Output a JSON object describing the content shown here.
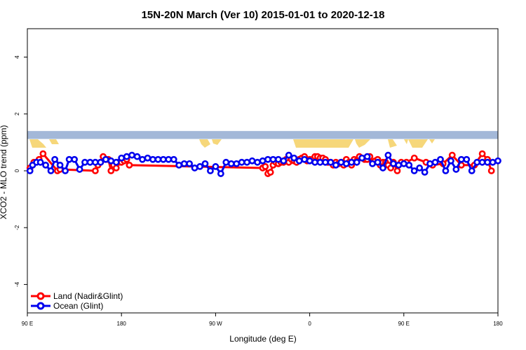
{
  "chart_data": {
    "type": "line",
    "title": "15N-20N March (Ver 10)   2015-01-01 to 2020-12-18",
    "xlabel": "Longitude (deg E)",
    "ylabel": "XCO2 - MLO trend (ppm)",
    "xlim": [
      90,
      450
    ],
    "ylim": [
      -5,
      5
    ],
    "x_ticks": [
      {
        "value": 90,
        "label": "90 E"
      },
      {
        "value": 180,
        "label": "180"
      },
      {
        "value": 270,
        "label": "90 W"
      },
      {
        "value": 360,
        "label": "0"
      },
      {
        "value": 450,
        "label": "90 E"
      },
      {
        "value": 540,
        "label": "180"
      }
    ],
    "y_ticks": [
      {
        "value": -4,
        "label": "-4"
      },
      {
        "value": -2,
        "label": "-2"
      },
      {
        "value": 0,
        "label": "0"
      },
      {
        "value": 2,
        "label": "2"
      },
      {
        "value": 4,
        "label": "4"
      }
    ],
    "x_range_shown": [
      90,
      540
    ],
    "land_band": {
      "ymin": 1.12,
      "ymax": 1.4,
      "ocean_color": "#a3b8d8",
      "land_color": "#f6d77a"
    },
    "legend_position": "bottom-left",
    "series": [
      {
        "name": "Land (Nadir&Glint)",
        "color": "#ff0000",
        "x": [
          92,
          95,
          99,
          102,
          113,
          115,
          142,
          144,
          146,
          148,
          150,
          152,
          154,
          156,
          158,
          160,
          162,
          164,
          166,
          168,
          270,
          272,
          274,
          276,
          278,
          280,
          282,
          284,
          286,
          288,
          290,
          292,
          294,
          296,
          298,
          300,
          302,
          304,
          306,
          308,
          310,
          312,
          314,
          316,
          318,
          320,
          322,
          324,
          326,
          328,
          330,
          332,
          334,
          336,
          338,
          340,
          342,
          344,
          346,
          348,
          350,
          352,
          354,
          356,
          358,
          360,
          362,
          364,
          366,
          368,
          370,
          373,
          376,
          380,
          386,
          395,
          400,
          408,
          415,
          422,
          432,
          438,
          442,
          445
        ],
        "values": [
          0.1,
          0.3,
          0.4,
          0.6,
          0.0,
          0.05,
          0.0,
          0.2,
          0.3,
          0.5,
          0.4,
          0.4,
          0.0,
          0.2,
          0.1,
          0.3,
          0.3,
          0.35,
          0.4,
          0.2,
          0.1,
          0.15,
          -0.1,
          -0.05,
          0.2,
          0.3,
          0.25,
          0.3,
          0.3,
          0.4,
          0.3,
          0.4,
          0.35,
          0.3,
          0.4,
          0.45,
          0.5,
          0.35,
          0.4,
          0.4,
          0.5,
          0.5,
          0.45,
          0.45,
          0.4,
          0.3,
          0.3,
          0.2,
          0.3,
          0.25,
          0.3,
          0.2,
          0.4,
          0.3,
          0.2,
          0.4,
          0.35,
          0.5,
          0.45,
          0.4,
          0.4,
          0.5,
          0.3,
          0.35,
          0.4,
          0.2,
          0.3,
          0.3,
          0.2,
          0.1,
          0.3,
          0.0,
          0.3,
          0.3,
          0.45,
          0.3,
          0.2,
          0.25,
          0.55,
          0.2,
          0.2,
          0.6,
          0.4,
          0.0
        ]
      },
      {
        "name": "Ocean (Glint)",
        "color": "#0000ee",
        "x": [
          92,
          94,
          97,
          100,
          104,
          108,
          111,
          115,
          119,
          122,
          126,
          130,
          134,
          138,
          142,
          146,
          150,
          154,
          158,
          162,
          166,
          170,
          174,
          178,
          182,
          186,
          190,
          194,
          198,
          202,
          206,
          210,
          214,
          218,
          222,
          226,
          230,
          234,
          238,
          242,
          246,
          250,
          254,
          258,
          262,
          266,
          270,
          274,
          278,
          282,
          286,
          290,
          294,
          298,
          302,
          306,
          310,
          314,
          318,
          322,
          326,
          330,
          334,
          338,
          342,
          346,
          350,
          354,
          358,
          362,
          366,
          370,
          374,
          378,
          382,
          386,
          390,
          394,
          398,
          402,
          406,
          410,
          414,
          418,
          422,
          426,
          430,
          434,
          438,
          442,
          446,
          450
        ],
        "values": [
          0.0,
          0.2,
          0.3,
          0.3,
          0.2,
          0.0,
          0.4,
          0.2,
          0.0,
          0.4,
          0.4,
          0.05,
          0.3,
          0.3,
          0.3,
          0.3,
          0.4,
          0.35,
          0.3,
          0.45,
          0.5,
          0.55,
          0.5,
          0.4,
          0.45,
          0.4,
          0.4,
          0.4,
          0.4,
          0.4,
          0.2,
          0.25,
          0.25,
          0.1,
          0.15,
          0.25,
          0.0,
          0.15,
          -0.1,
          0.3,
          0.25,
          0.25,
          0.3,
          0.3,
          0.35,
          0.3,
          0.35,
          0.4,
          0.4,
          0.4,
          0.35,
          0.55,
          0.45,
          0.35,
          0.4,
          0.35,
          0.3,
          0.3,
          0.3,
          0.3,
          0.2,
          0.3,
          0.25,
          0.3,
          0.3,
          0.45,
          0.5,
          0.25,
          0.3,
          0.1,
          0.55,
          0.25,
          0.2,
          0.25,
          0.2,
          0.0,
          0.1,
          -0.05,
          0.25,
          0.3,
          0.4,
          0.0,
          0.35,
          0.05,
          0.4,
          0.4,
          0.0,
          0.3,
          0.3,
          0.3,
          0.3,
          0.35
        ]
      }
    ]
  }
}
